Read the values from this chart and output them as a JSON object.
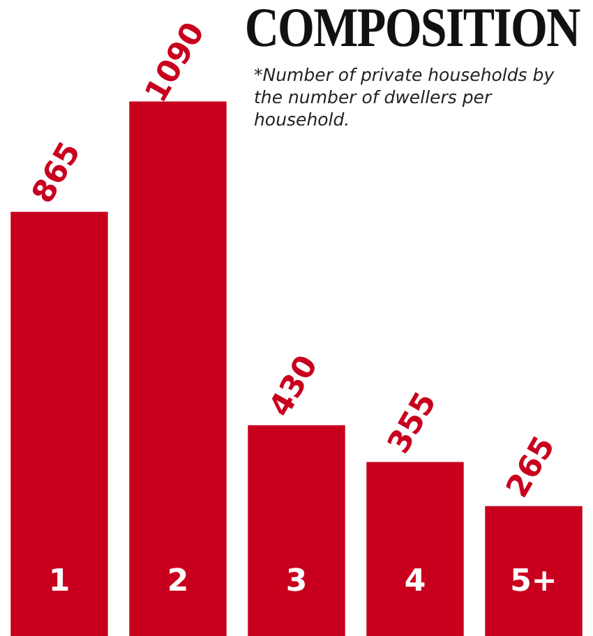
{
  "chart_data": {
    "type": "bar",
    "title": "COMPOSITION",
    "subtitle": "*Number of private households by the number of dwellers per household.",
    "categories": [
      "1",
      "2",
      "3",
      "4",
      "5+"
    ],
    "values": [
      865,
      1090,
      430,
      355,
      265
    ],
    "color": "#c8001e",
    "data_labels": true
  }
}
